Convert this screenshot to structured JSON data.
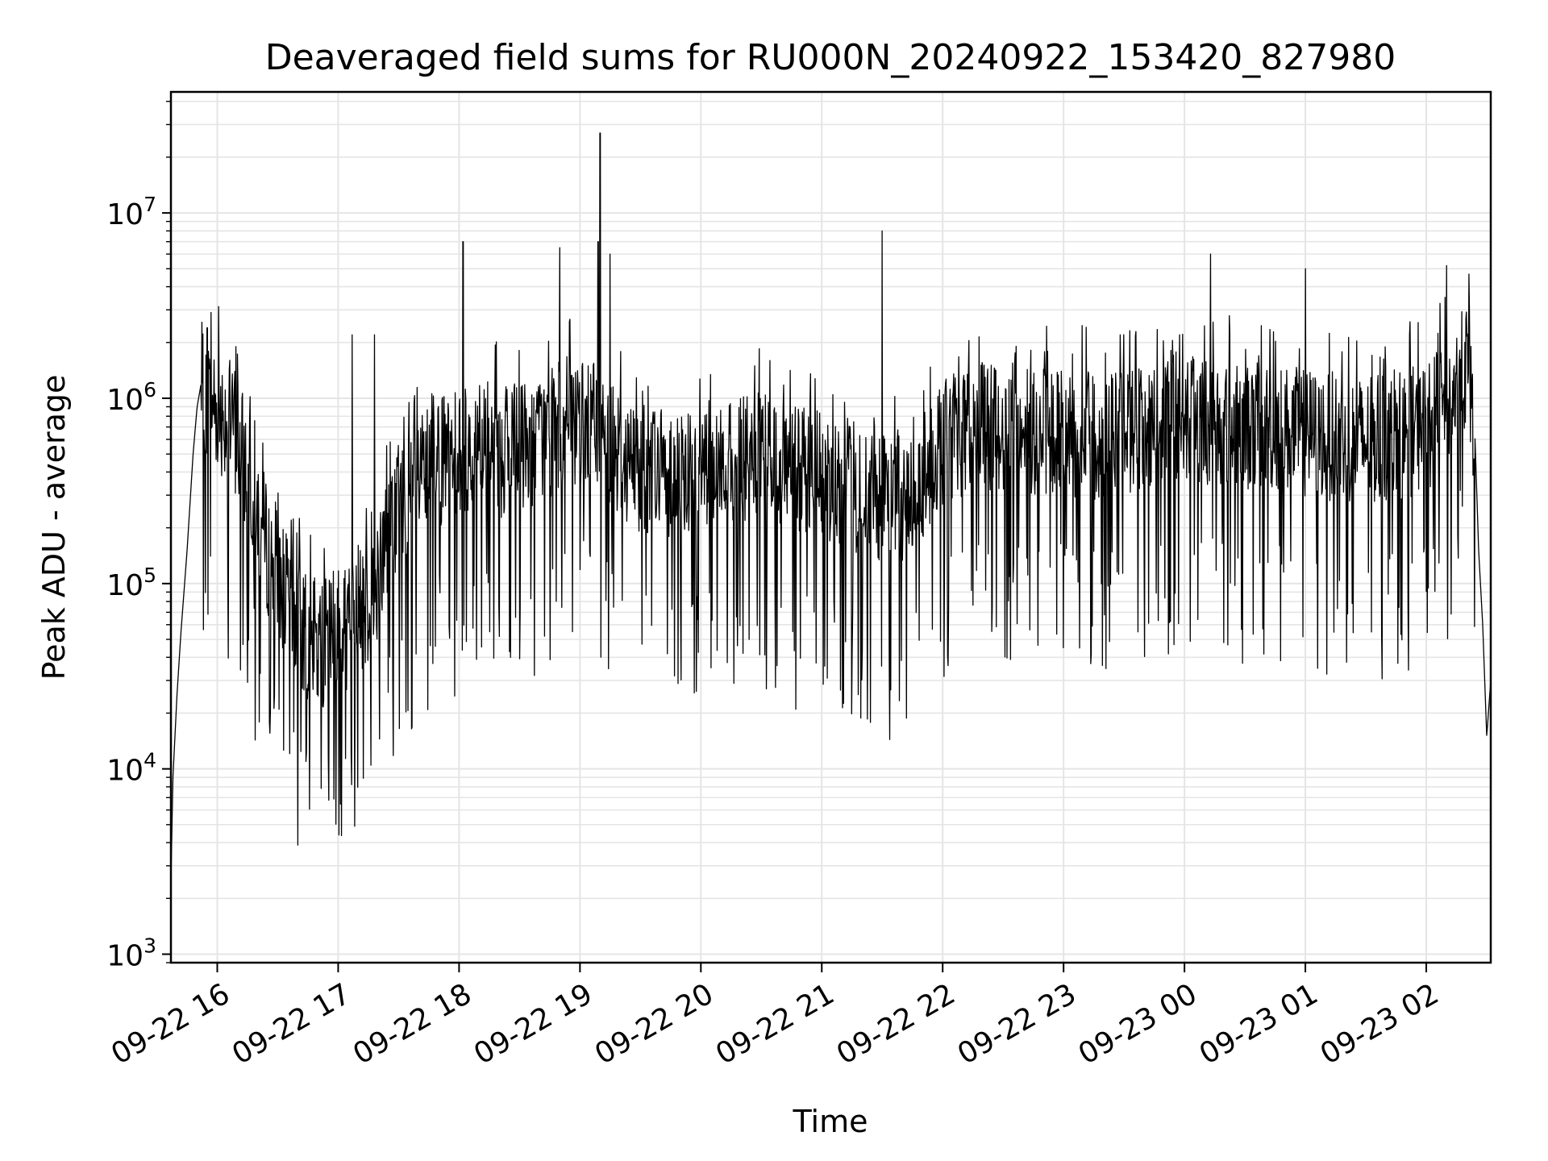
{
  "chart_data": {
    "type": "line",
    "title": "Deaveraged field sums for RU000N_20240922_153420_827980",
    "xlabel": "Time",
    "ylabel": "Peak ADU - average",
    "yscale": "log",
    "ylim": [
      900,
      45000000
    ],
    "xlim": [
      "2024-09-22 15:37",
      "2024-09-23 02:32"
    ],
    "grid": true,
    "line_color": "#000000",
    "grid_color": "#e5e5e5",
    "x_ticks": [
      {
        "label": "09-22 16",
        "t": "2024-09-22 16:00"
      },
      {
        "label": "09-22 17",
        "t": "2024-09-22 17:00"
      },
      {
        "label": "09-22 18",
        "t": "2024-09-22 18:00"
      },
      {
        "label": "09-22 19",
        "t": "2024-09-22 19:00"
      },
      {
        "label": "09-22 20",
        "t": "2024-09-22 20:00"
      },
      {
        "label": "09-22 21",
        "t": "2024-09-22 21:00"
      },
      {
        "label": "09-22 22",
        "t": "2024-09-22 22:00"
      },
      {
        "label": "09-22 23",
        "t": "2024-09-22 23:00"
      },
      {
        "label": "09-23 00",
        "t": "2024-09-23 00:00"
      },
      {
        "label": "09-23 01",
        "t": "2024-09-23 01:00"
      },
      {
        "label": "09-23 02",
        "t": "2024-09-23 02:00"
      }
    ],
    "y_ticks": [
      {
        "base": "10",
        "exp": "3",
        "value": 1000
      },
      {
        "base": "10",
        "exp": "4",
        "value": 10000
      },
      {
        "base": "10",
        "exp": "5",
        "value": 100000
      },
      {
        "base": "10",
        "exp": "6",
        "value": 1000000
      },
      {
        "base": "10",
        "exp": "7",
        "value": 10000000
      }
    ],
    "series": [
      {
        "points": [
          [
            "2024-09-22 15:37",
            2500
          ],
          [
            "2024-09-22 15:38",
            9000
          ],
          [
            "2024-09-22 15:40",
            25000
          ],
          [
            "2024-09-22 15:42",
            55000
          ],
          [
            "2024-09-22 15:45",
            150000
          ],
          [
            "2024-09-22 15:48",
            500000
          ],
          [
            "2024-09-22 15:50",
            900000
          ],
          [
            "2024-09-22 15:52",
            1200000
          ],
          [
            "2024-09-22 15:55",
            1000000
          ],
          [
            "2024-09-22 16:00",
            900000
          ],
          [
            "2024-09-22 16:05",
            800000
          ],
          [
            "2024-09-22 16:10",
            600000
          ],
          [
            "2024-09-22 16:15",
            400000
          ],
          [
            "2024-09-22 16:20",
            250000
          ],
          [
            "2024-09-22 16:25",
            150000
          ],
          [
            "2024-09-22 16:30",
            120000
          ],
          [
            "2024-09-22 16:35",
            80000
          ],
          [
            "2024-09-22 16:40",
            60000
          ],
          [
            "2024-09-22 16:45",
            50000
          ],
          [
            "2024-09-22 16:50",
            45000
          ],
          [
            "2024-09-22 16:55",
            50000
          ],
          [
            "2024-09-22 17:00",
            55000
          ],
          [
            "2024-09-22 17:05",
            60000
          ],
          [
            "2024-09-22 17:10",
            70000
          ],
          [
            "2024-09-22 17:15",
            80000
          ],
          [
            "2024-09-22 17:20",
            110000
          ],
          [
            "2024-09-22 17:25",
            180000
          ],
          [
            "2024-09-22 17:30",
            250000
          ],
          [
            "2024-09-22 17:40",
            350000
          ],
          [
            "2024-09-22 17:50",
            450000
          ],
          [
            "2024-09-22 18:00",
            500000
          ],
          [
            "2024-09-22 18:10",
            550000
          ],
          [
            "2024-09-22 18:20",
            500000
          ],
          [
            "2024-09-22 18:30",
            550000
          ],
          [
            "2024-09-22 18:40",
            600000
          ],
          [
            "2024-09-22 18:50",
            650000
          ],
          [
            "2024-09-22 19:00",
            700000
          ],
          [
            "2024-09-22 19:10",
            700000
          ],
          [
            "2024-09-22 19:20",
            500000
          ],
          [
            "2024-09-22 19:30",
            420000
          ],
          [
            "2024-09-22 19:45",
            400000
          ],
          [
            "2024-09-22 20:00",
            420000
          ],
          [
            "2024-09-22 20:15",
            450000
          ],
          [
            "2024-09-22 20:30",
            480000
          ],
          [
            "2024-09-22 20:45",
            420000
          ],
          [
            "2024-09-22 21:00",
            380000
          ],
          [
            "2024-09-22 21:15",
            320000
          ],
          [
            "2024-09-22 21:30",
            280000
          ],
          [
            "2024-09-22 21:45",
            300000
          ],
          [
            "2024-09-22 22:00",
            600000
          ],
          [
            "2024-09-22 22:15",
            700000
          ],
          [
            "2024-09-22 22:30",
            700000
          ],
          [
            "2024-09-22 22:45",
            680000
          ],
          [
            "2024-09-22 23:00",
            650000
          ],
          [
            "2024-09-22 23:15",
            620000
          ],
          [
            "2024-09-22 23:30",
            680000
          ],
          [
            "2024-09-22 23:45",
            720000
          ],
          [
            "2024-09-23 00:00",
            800000
          ],
          [
            "2024-09-23 00:15",
            750000
          ],
          [
            "2024-09-23 00:30",
            700000
          ],
          [
            "2024-09-23 00:45",
            700000
          ],
          [
            "2024-09-23 01:00",
            650000
          ],
          [
            "2024-09-23 01:15",
            620000
          ],
          [
            "2024-09-23 01:30",
            580000
          ],
          [
            "2024-09-23 01:45",
            620000
          ],
          [
            "2024-09-23 02:00",
            700000
          ],
          [
            "2024-09-23 02:10",
            900000
          ],
          [
            "2024-09-23 02:20",
            1500000
          ],
          [
            "2024-09-23 02:24",
            700000
          ],
          [
            "2024-09-23 02:26",
            150000
          ],
          [
            "2024-09-23 02:28",
            60000
          ],
          [
            "2024-09-23 02:30",
            15000
          ],
          [
            "2024-09-23 02:32",
            30000
          ]
        ],
        "peaks": [
          [
            "2024-09-22 18:02",
            7000000
          ],
          [
            "2024-09-22 18:50",
            6500000
          ],
          [
            "2024-09-22 19:09",
            7000000
          ],
          [
            "2024-09-22 19:10",
            27000000
          ],
          [
            "2024-09-22 19:15",
            6000000
          ],
          [
            "2024-09-22 21:30",
            8000000
          ],
          [
            "2024-09-22 15:55",
            2400000
          ],
          [
            "2024-09-22 17:07",
            2200000
          ],
          [
            "2024-09-22 17:18",
            2200000
          ],
          [
            "2024-09-23 00:13",
            6000000
          ],
          [
            "2024-09-23 01:00",
            5000000
          ],
          [
            "2024-09-23 02:10",
            5200000
          ]
        ]
      }
    ]
  }
}
